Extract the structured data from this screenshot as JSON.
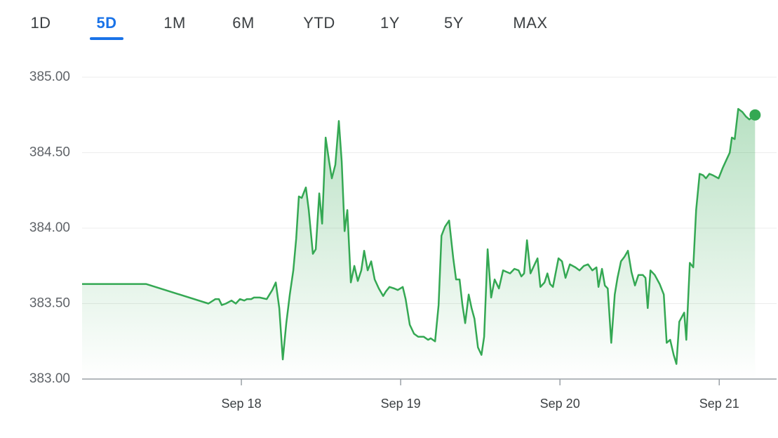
{
  "tabs": [
    "1D",
    "5D",
    "1M",
    "6M",
    "YTD",
    "1Y",
    "5Y",
    "MAX"
  ],
  "active_tab": "5D",
  "chart_data": {
    "type": "line",
    "color": "#34a853",
    "grid": true,
    "area_fill": true,
    "end_marker": true,
    "xlim": [
      17,
      21.36
    ],
    "xticks": [
      {
        "value": 18,
        "label": "Sep 18"
      },
      {
        "value": 19,
        "label": "Sep 19"
      },
      {
        "value": 20,
        "label": "Sep 20"
      },
      {
        "value": 21,
        "label": "Sep 21"
      }
    ],
    "ylim": [
      383,
      385
    ],
    "yticks": [
      {
        "value": 383,
        "label": "383.00"
      },
      {
        "value": 383.5,
        "label": "383.50"
      },
      {
        "value": 384,
        "label": "384.00"
      },
      {
        "value": 384.5,
        "label": "384.50"
      },
      {
        "value": 385,
        "label": "385.00"
      }
    ],
    "x": [
      17.0,
      17.401,
      17.793,
      17.837,
      17.859,
      17.877,
      17.903,
      17.938,
      17.965,
      17.991,
      18.018,
      18.035,
      18.062,
      18.079,
      18.115,
      18.159,
      18.194,
      18.216,
      18.238,
      18.26,
      18.282,
      18.304,
      18.326,
      18.344,
      18.361,
      18.379,
      18.405,
      18.423,
      18.449,
      18.467,
      18.489,
      18.507,
      18.529,
      18.551,
      18.568,
      18.59,
      18.612,
      18.63,
      18.648,
      18.665,
      18.687,
      18.709,
      18.731,
      18.753,
      18.771,
      18.793,
      18.815,
      18.837,
      18.863,
      18.89,
      18.907,
      18.93,
      18.96,
      18.982,
      19.013,
      19.031,
      19.057,
      19.084,
      19.11,
      19.145,
      19.172,
      19.189,
      19.216,
      19.238,
      19.256,
      19.278,
      19.304,
      19.33,
      19.348,
      19.37,
      19.388,
      19.405,
      19.427,
      19.445,
      19.463,
      19.485,
      19.507,
      19.524,
      19.546,
      19.568,
      19.59,
      19.617,
      19.643,
      19.665,
      19.687,
      19.714,
      19.74,
      19.758,
      19.775,
      19.793,
      19.815,
      19.841,
      19.859,
      19.877,
      19.903,
      19.921,
      19.938,
      19.956,
      19.991,
      20.013,
      20.035,
      20.062,
      20.097,
      20.123,
      20.15,
      20.176,
      20.203,
      20.229,
      20.242,
      20.264,
      20.282,
      20.3,
      20.322,
      20.344,
      20.361,
      20.383,
      20.405,
      20.427,
      20.449,
      20.471,
      20.493,
      20.52,
      20.537,
      20.551,
      20.568,
      20.595,
      20.626,
      20.652,
      20.67,
      20.692,
      20.714,
      20.731,
      20.749,
      20.78,
      20.793,
      20.815,
      20.837,
      20.855,
      20.877,
      20.899,
      20.916,
      20.938,
      20.96,
      20.996,
      21.022,
      21.044,
      21.066,
      21.079,
      21.097,
      21.119,
      21.145,
      21.167,
      21.189,
      21.225
    ],
    "values": [
      383.63,
      383.63,
      383.5,
      383.53,
      383.53,
      383.49,
      383.5,
      383.52,
      383.5,
      383.53,
      383.52,
      383.53,
      383.53,
      383.54,
      383.54,
      383.53,
      383.59,
      383.64,
      383.47,
      383.13,
      383.37,
      383.56,
      383.72,
      383.93,
      384.21,
      384.2,
      384.27,
      384.12,
      383.83,
      383.86,
      384.23,
      384.03,
      384.6,
      384.44,
      384.33,
      384.42,
      384.71,
      384.44,
      383.98,
      384.12,
      383.64,
      383.75,
      383.65,
      383.72,
      383.85,
      383.72,
      383.78,
      383.66,
      383.6,
      383.55,
      383.58,
      383.61,
      383.6,
      383.59,
      383.61,
      383.53,
      383.36,
      383.3,
      383.28,
      383.28,
      383.26,
      383.27,
      383.25,
      383.49,
      383.95,
      384.01,
      384.05,
      383.8,
      383.66,
      383.66,
      383.49,
      383.37,
      383.56,
      383.47,
      383.4,
      383.21,
      383.16,
      383.28,
      383.86,
      383.54,
      383.66,
      383.6,
      383.72,
      383.71,
      383.7,
      383.73,
      383.72,
      383.68,
      383.7,
      383.92,
      383.7,
      383.76,
      383.8,
      383.61,
      383.64,
      383.7,
      383.63,
      383.61,
      383.8,
      383.78,
      383.67,
      383.76,
      383.74,
      383.72,
      383.75,
      383.76,
      383.72,
      383.74,
      383.61,
      383.73,
      383.62,
      383.6,
      383.24,
      383.56,
      383.67,
      383.78,
      383.81,
      383.85,
      383.71,
      383.62,
      383.69,
      383.69,
      383.67,
      383.47,
      383.72,
      383.69,
      383.63,
      383.56,
      383.24,
      383.26,
      383.16,
      383.1,
      383.38,
      383.44,
      383.26,
      383.77,
      383.74,
      384.12,
      384.36,
      384.35,
      384.33,
      384.36,
      384.35,
      384.33,
      384.4,
      384.45,
      384.5,
      384.6,
      384.59,
      384.79,
      384.77,
      384.74,
      384.72,
      384.75
    ]
  }
}
